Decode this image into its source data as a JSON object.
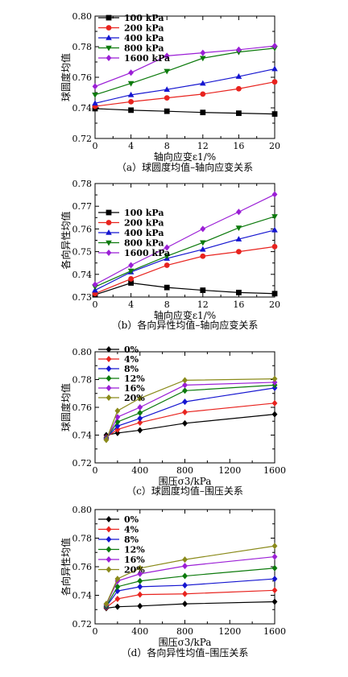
{
  "chart_data": [
    {
      "type": "line",
      "caption": "（a）球圆度均值–轴向应变关系",
      "xlabel": "轴向应变ε1/%",
      "ylabel": "球圆度均值",
      "xlim": [
        0,
        20
      ],
      "ylim": [
        0.72,
        0.8
      ],
      "xticks": [
        "0",
        "4",
        "8",
        "12",
        "16",
        "20"
      ],
      "yticks": [
        "0.72",
        "0.74",
        "0.76",
        "0.78",
        "0.80"
      ],
      "x": [
        0,
        4,
        8,
        12,
        16,
        20
      ],
      "series": [
        {
          "name": "100 kPa",
          "color": "#000000",
          "marker": "square",
          "values": [
            0.7395,
            0.7385,
            0.7378,
            0.737,
            0.7365,
            0.736
          ]
        },
        {
          "name": "200 kPa",
          "color": "#e8231e",
          "marker": "circle",
          "values": [
            0.741,
            0.744,
            0.7465,
            0.749,
            0.7525,
            0.757
          ]
        },
        {
          "name": "400 kPa",
          "color": "#1515d0",
          "marker": "triangle",
          "values": [
            0.743,
            0.7485,
            0.752,
            0.756,
            0.7605,
            0.7655
          ]
        },
        {
          "name": "800 kPa",
          "color": "#0c7a0c",
          "marker": "tri-down",
          "values": [
            0.7485,
            0.756,
            0.764,
            0.7725,
            0.7765,
            0.779
          ]
        },
        {
          "name": "1600 kPa",
          "color": "#9b1fd6",
          "marker": "diamond",
          "values": [
            0.754,
            0.763,
            0.774,
            0.776,
            0.778,
            0.7805
          ]
        }
      ]
    },
    {
      "type": "line",
      "caption": "（b）各向异性均值–轴向应变关系",
      "xlabel": "轴向应变ε1/%",
      "ylabel": "各向异性均值",
      "xlim": [
        0,
        20
      ],
      "ylim": [
        0.73,
        0.78
      ],
      "xticks": [
        "0",
        "4",
        "8",
        "12",
        "16",
        "20"
      ],
      "yticks": [
        "0.73",
        "0.74",
        "0.75",
        "0.76",
        "0.77",
        "0.78"
      ],
      "x": [
        0,
        4,
        8,
        12,
        16,
        20
      ],
      "series": [
        {
          "name": "100 kPa",
          "color": "#000000",
          "marker": "square",
          "values": [
            0.731,
            0.7362,
            0.7342,
            0.733,
            0.732,
            0.7315
          ]
        },
        {
          "name": "200 kPa",
          "color": "#e8231e",
          "marker": "circle",
          "values": [
            0.7315,
            0.738,
            0.744,
            0.748,
            0.75,
            0.7522
          ]
        },
        {
          "name": "400 kPa",
          "color": "#1515d0",
          "marker": "triangle",
          "values": [
            0.733,
            0.741,
            0.747,
            0.751,
            0.7555,
            0.7595
          ]
        },
        {
          "name": "800 kPa",
          "color": "#0c7a0c",
          "marker": "tri-down",
          "values": [
            0.7345,
            0.7415,
            0.748,
            0.754,
            0.7605,
            0.7655
          ]
        },
        {
          "name": "1600 kPa",
          "color": "#9b1fd6",
          "marker": "diamond",
          "values": [
            0.7355,
            0.744,
            0.7518,
            0.76,
            0.7675,
            0.7752
          ]
        }
      ]
    },
    {
      "type": "line",
      "caption": "（c）球圆度均值–围压关系",
      "xlabel": "围压σ3/kPa",
      "ylabel": "球圆度均值",
      "xlim": [
        0,
        1600
      ],
      "ylim": [
        0.72,
        0.8
      ],
      "xticks": [
        "0",
        "400",
        "800",
        "1200",
        "1600"
      ],
      "yticks": [
        "0.72",
        "0.74",
        "0.76",
        "0.78",
        "0.80"
      ],
      "x": [
        100,
        200,
        400,
        800,
        1600
      ],
      "series": [
        {
          "name": "0%",
          "color": "#000000",
          "marker": "diamond",
          "values": [
            0.74,
            0.7415,
            0.7435,
            0.7485,
            0.755
          ]
        },
        {
          "name": "4%",
          "color": "#e8231e",
          "marker": "diamond",
          "values": [
            0.7385,
            0.744,
            0.749,
            0.7565,
            0.763
          ]
        },
        {
          "name": "8%",
          "color": "#1515d0",
          "marker": "diamond",
          "values": [
            0.738,
            0.7465,
            0.752,
            0.764,
            0.774
          ]
        },
        {
          "name": "12%",
          "color": "#0c7a0c",
          "marker": "diamond",
          "values": [
            0.7375,
            0.7495,
            0.756,
            0.772,
            0.776
          ]
        },
        {
          "name": "16%",
          "color": "#9b1fd6",
          "marker": "diamond",
          "values": [
            0.737,
            0.753,
            0.76,
            0.776,
            0.778
          ]
        },
        {
          "name": "20%",
          "color": "#8a8a1a",
          "marker": "diamond",
          "values": [
            0.7365,
            0.7575,
            0.7665,
            0.7795,
            0.7805
          ]
        }
      ]
    },
    {
      "type": "line",
      "caption": "（d）各向异性均值–围压关系",
      "xlabel": "围压σ3/kPa",
      "ylabel": "各向异性均值",
      "xlim": [
        0,
        1600
      ],
      "ylim": [
        0.72,
        0.8
      ],
      "xticks": [
        "0",
        "400",
        "800",
        "1200",
        "1600"
      ],
      "yticks": [
        "0.72",
        "0.74",
        "0.76",
        "0.78",
        "0.80"
      ],
      "x": [
        100,
        200,
        400,
        800,
        1600
      ],
      "series": [
        {
          "name": "0%",
          "color": "#000000",
          "marker": "diamond",
          "values": [
            0.731,
            0.732,
            0.7325,
            0.734,
            0.7355
          ]
        },
        {
          "name": "4%",
          "color": "#e8231e",
          "marker": "diamond",
          "values": [
            0.7315,
            0.7375,
            0.7405,
            0.741,
            0.7435
          ]
        },
        {
          "name": "8%",
          "color": "#1515d0",
          "marker": "diamond",
          "values": [
            0.732,
            0.743,
            0.746,
            0.747,
            0.7515
          ]
        },
        {
          "name": "12%",
          "color": "#0c7a0c",
          "marker": "diamond",
          "values": [
            0.7325,
            0.746,
            0.75,
            0.7535,
            0.759
          ]
        },
        {
          "name": "16%",
          "color": "#9b1fd6",
          "marker": "diamond",
          "values": [
            0.7335,
            0.75,
            0.755,
            0.7605,
            0.767
          ]
        },
        {
          "name": "20%",
          "color": "#8a8a1a",
          "marker": "diamond",
          "values": [
            0.734,
            0.7515,
            0.759,
            0.765,
            0.7745
          ]
        }
      ]
    }
  ]
}
